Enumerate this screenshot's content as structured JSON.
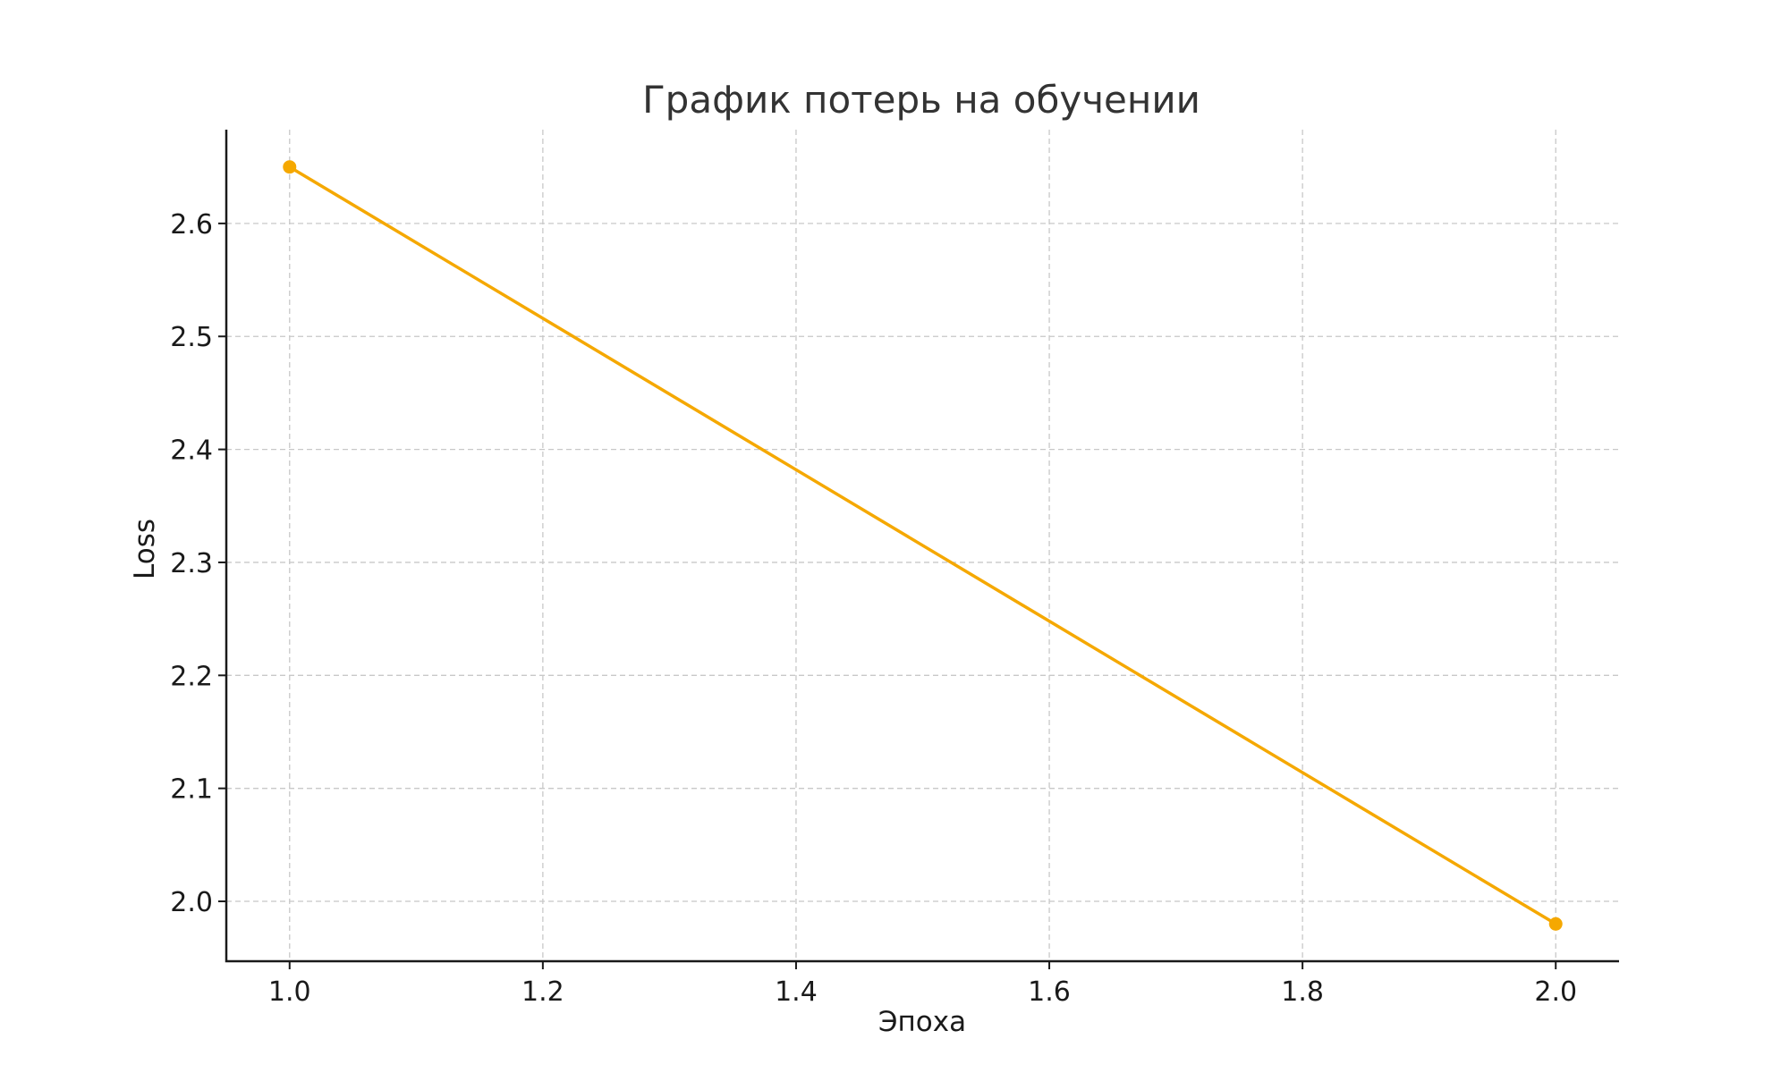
{
  "chart_data": {
    "type": "line",
    "title": "График потерь на обучении",
    "xlabel": "Эпоха",
    "ylabel": "Loss",
    "xlim": [
      0.95,
      2.05
    ],
    "ylim": [
      1.947,
      2.683
    ],
    "xticks": [
      1.0,
      1.2,
      1.4,
      1.6,
      1.8,
      2.0
    ],
    "xtick_labels": [
      "1.0",
      "1.2",
      "1.4",
      "1.6",
      "1.8",
      "2.0"
    ],
    "yticks": [
      2.0,
      2.1,
      2.2,
      2.3,
      2.4,
      2.5,
      2.6
    ],
    "ytick_labels": [
      "2.0",
      "2.1",
      "2.2",
      "2.3",
      "2.4",
      "2.5",
      "2.6"
    ],
    "grid": true,
    "series": [
      {
        "color": "#f5a800",
        "marker": "circle",
        "x": [
          1.0,
          2.0
        ],
        "y": [
          2.65,
          1.98
        ]
      }
    ]
  }
}
